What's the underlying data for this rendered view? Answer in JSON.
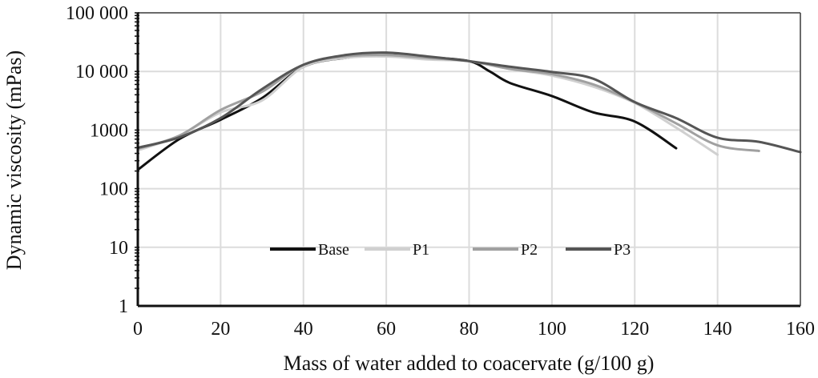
{
  "chart_data": {
    "type": "line",
    "xlabel": "Mass of water added to coacervate (g/100 g)",
    "ylabel": "Dynamic viscosity (mPas)",
    "xlim": [
      0,
      160
    ],
    "ylim": [
      1,
      100000
    ],
    "y_scale": "log",
    "grid": true,
    "legend_position": "bottom-center (inside plot)",
    "x_ticks": [
      "0",
      "20",
      "40",
      "60",
      "80",
      "100",
      "120",
      "140",
      "160"
    ],
    "y_ticks": [
      {
        "value": 100000,
        "label": "100 000"
      },
      {
        "value": 10000,
        "label": "10 000"
      },
      {
        "value": 1000,
        "label": "1000"
      },
      {
        "value": 100,
        "label": "100"
      },
      {
        "value": 10,
        "label": "10"
      },
      {
        "value": 1,
        "label": "1"
      }
    ],
    "series": [
      {
        "name": "Base",
        "color": "#111111",
        "x": [
          0,
          10,
          20,
          30,
          40,
          50,
          60,
          70,
          80,
          85,
          90,
          100,
          110,
          120,
          130
        ],
        "y": [
          210,
          700,
          1500,
          3500,
          12000,
          17000,
          19000,
          17500,
          15000,
          10000,
          6300,
          3800,
          2000,
          1400,
          490
        ]
      },
      {
        "name": "P1",
        "color": "#d0d0d0",
        "x": [
          0,
          10,
          20,
          30,
          40,
          50,
          60,
          70,
          80,
          90,
          100,
          110,
          120,
          130,
          140
        ],
        "y": [
          450,
          800,
          2000,
          3200,
          12000,
          17000,
          18000,
          16000,
          15000,
          11000,
          8500,
          5500,
          2900,
          1100,
          380
        ]
      },
      {
        "name": "P2",
        "color": "#a0a0a0",
        "x": [
          0,
          10,
          20,
          30,
          40,
          50,
          60,
          70,
          80,
          90,
          100,
          110,
          120,
          130,
          140,
          150
        ],
        "y": [
          480,
          800,
          2200,
          4500,
          13000,
          18000,
          19000,
          17000,
          15000,
          11000,
          9000,
          6000,
          3000,
          1300,
          550,
          440
        ]
      },
      {
        "name": "P3",
        "color": "#555555",
        "x": [
          0,
          10,
          20,
          30,
          40,
          50,
          60,
          70,
          80,
          90,
          100,
          110,
          120,
          130,
          140,
          150,
          160
        ],
        "y": [
          500,
          750,
          1600,
          5000,
          13000,
          19000,
          21000,
          18000,
          15000,
          12000,
          9800,
          7500,
          3000,
          1600,
          740,
          630,
          420
        ]
      }
    ]
  }
}
